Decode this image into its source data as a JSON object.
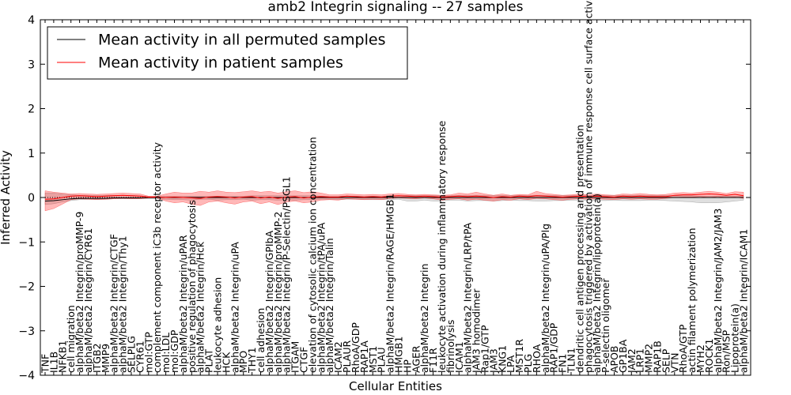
{
  "chart_data": {
    "type": "line",
    "title": "amb2 Integrin signaling -- 27 samples",
    "xlabel": "Cellular Entities",
    "ylabel": "Inferred Activity",
    "ylim": [
      -4,
      4
    ],
    "yticks": [
      -4,
      -3,
      -2,
      -1,
      0,
      1,
      2,
      3,
      4
    ],
    "grid": false,
    "legend_position": "top-left",
    "categories": [
      "TNF",
      "IL1B",
      "NFKB1",
      "cell migration",
      "alphaM/beta2 Integrin/proMMP-9",
      "alphaM/beta2 Integrin/CYR61",
      "ITGB2",
      "MMP9",
      "alphaM/beta2 Integrin/CTGF",
      "alphaM/beta2 Integrin/Thy1",
      "SELPLG",
      "CYR61",
      "mol:GTP",
      "complement component iC3b receptor activity",
      "mol:LDL",
      "mol:GDP",
      "alphaM/beta2 Integrin/uPAR",
      "positive regulation of phagocytosis",
      "alphaM/beta2 Integrin/Hck",
      "PLAT",
      "leukocyte adhesion",
      "HCK",
      "alphaM/beta2 Integrin/uPA",
      "MPO",
      "THY1",
      "cell adhesion",
      "alphaM/beta2 Integrin/GPIbA",
      "alphaM/beta2 Integrin/proMMP-2",
      "alphaM/beta2 Integrin/P-Selectin/PSGL1",
      "ITGAM",
      "CTGF",
      "elevation of cytosolic calcium ion concentration",
      "alphaM/beta2 Integrin/tPA/uPA",
      "alphaM/beta2 Integrin/Talin",
      "ICAM2",
      "PLAUR",
      "RhoA/GDP",
      "RAP1A",
      "MST1",
      "PLAU",
      "alphaM/beta2 Integrin/RAGE/HMGB1",
      "HMGB1",
      "HP",
      "AGER",
      "alphaM/beta2 Integrin",
      "F11R",
      "leukocyte activation during inflammatory response",
      "fibrinolysis",
      "ICAM1",
      "alphaM/beta2 Integrin/LRP/tPA",
      "JAM3 homodimer",
      "Rap1/GTP",
      "JAM3",
      "KNG1",
      "LPA",
      "MST1R",
      "PLG",
      "RHOA",
      "alphaM/beta2 Integrin/uPA/Plg",
      "RAP1/GDP",
      "FN1",
      "TLN1",
      "dendritic cell antigen processing and presentation",
      "phagocytosis triggered by activation of immune response cell surface activating receptor",
      "alphaM/beta2 Integrin/lipoprotein(a)",
      "P-selectin oligomer",
      "APOB",
      "GP1BA",
      "JAM2",
      "LRP1",
      "MMP2",
      "RAP1B",
      "SELP",
      "VTN",
      "RhoA/GTP",
      "actin filament polymerization",
      "MYH2",
      "ROCK1",
      "alphaM/beta2 Integrin/JAM2/JAM3",
      "Ron/MSP",
      "Lipoprotein(a)",
      "alphaM/beta2 Integrin/ICAM1"
    ],
    "series": [
      {
        "name": "Mean activity in all permuted samples",
        "color": "#000000",
        "values": [
          -0.08,
          -0.07,
          -0.05,
          -0.03,
          -0.02,
          -0.02,
          -0.02,
          -0.02,
          -0.01,
          -0.01,
          -0.01,
          -0.01,
          0,
          0,
          0,
          0,
          0,
          0,
          0,
          0,
          0,
          0,
          0,
          0,
          0,
          0,
          0,
          0,
          0,
          0,
          0,
          0,
          0,
          0,
          0,
          0,
          0,
          0,
          0,
          0,
          0,
          0,
          0,
          0,
          0,
          0,
          0,
          0,
          0,
          0,
          0,
          0,
          0,
          0,
          0,
          0,
          0,
          0,
          0,
          0,
          0,
          0,
          0,
          0,
          0,
          0,
          0,
          0,
          0,
          0,
          0,
          0,
          0,
          0,
          0,
          0,
          0,
          0,
          0,
          0,
          0,
          0
        ],
        "band_lower": [
          -0.16,
          -0.14,
          -0.1,
          -0.07,
          -0.05,
          -0.04,
          -0.04,
          -0.04,
          -0.03,
          -0.03,
          -0.03,
          -0.02,
          -0.03,
          -0.03,
          -0.04,
          -0.05,
          -0.05,
          -0.06,
          -0.04,
          -0.04,
          -0.06,
          -0.05,
          -0.05,
          -0.04,
          -0.06,
          -0.05,
          -0.05,
          -0.06,
          -0.05,
          -0.06,
          -0.05,
          -0.05,
          -0.04,
          -0.04,
          -0.05,
          -0.04,
          -0.04,
          -0.05,
          -0.05,
          -0.05,
          -0.05,
          -0.04,
          -0.08,
          -0.08,
          -0.06,
          -0.08,
          -0.08,
          -0.06,
          -0.06,
          -0.08,
          -0.07,
          -0.07,
          -0.08,
          -0.07,
          -0.06,
          -0.07,
          -0.07,
          -0.08,
          -0.08,
          -0.07,
          -0.07,
          -0.06,
          -0.06,
          -0.06,
          -0.07,
          -0.07,
          -0.06,
          -0.07,
          -0.07,
          -0.07,
          -0.06,
          -0.06,
          -0.07,
          -0.08,
          -0.09,
          -0.1,
          -0.12,
          -0.12,
          -0.12,
          -0.1,
          -0.08,
          -0.06
        ],
        "band_upper": [
          0.1,
          0.1,
          0.08,
          0.06,
          0.05,
          0.05,
          0.05,
          0.05,
          0.05,
          0.05,
          0.05,
          0.04,
          0.02,
          0.02,
          0.03,
          0.03,
          0.03,
          0.03,
          0.03,
          0.03,
          0.03,
          0.03,
          0.03,
          0.03,
          0.04,
          0.04,
          0.04,
          0.04,
          0.04,
          0.04,
          0.04,
          0.04,
          0.03,
          0.03,
          0.03,
          0.03,
          0.03,
          0.03,
          0.03,
          0.03,
          0.03,
          0.04,
          0.05,
          0.05,
          0.04,
          0.05,
          0.05,
          0.04,
          0.05,
          0.05,
          0.05,
          0.05,
          0.05,
          0.05,
          0.04,
          0.05,
          0.05,
          0.05,
          0.05,
          0.05,
          0.05,
          0.05,
          0.05,
          0.05,
          0.05,
          0.05,
          0.05,
          0.05,
          0.05,
          0.05,
          0.05,
          0.05,
          0.05,
          0.04,
          0.04,
          0.04,
          0.03,
          0.03,
          0.03,
          0.03,
          0.03,
          0.03
        ]
      },
      {
        "name": "Mean activity in patient samples",
        "color": "#ff0000",
        "values": [
          -0.04,
          -0.03,
          0.0,
          0.03,
          0.04,
          0.03,
          0.02,
          0.03,
          0.04,
          0.05,
          0.04,
          0.03,
          0.01,
          0.01,
          0.0,
          0.01,
          0.0,
          -0.01,
          -0.02,
          0.01,
          0.02,
          0.01,
          -0.01,
          0.01,
          0.02,
          -0.01,
          0.01,
          -0.02,
          0.01,
          0.02,
          -0.01,
          0.01,
          0.02,
          0.01,
          0.01,
          0.03,
          0.02,
          0.01,
          0.02,
          0.01,
          0.03,
          0.04,
          0.03,
          0.02,
          0.03,
          0.02,
          0.01,
          0.02,
          0.03,
          0.02,
          0.03,
          0.02,
          0.0,
          0.02,
          0.01,
          0.03,
          0.02,
          0.04,
          0.03,
          0.02,
          0.01,
          0.02,
          0.03,
          0.02,
          0.03,
          0.02,
          0.01,
          0.03,
          0.02,
          0.03,
          0.02,
          0.02,
          0.02,
          0.05,
          0.06,
          0.06,
          0.07,
          0.08,
          0.07,
          0.05,
          0.07,
          0.04
        ],
        "band_lower": [
          -0.3,
          -0.25,
          -0.15,
          -0.05,
          -0.03,
          -0.04,
          -0.05,
          -0.04,
          -0.03,
          -0.02,
          -0.03,
          -0.03,
          -0.01,
          -0.01,
          -0.08,
          -0.12,
          -0.1,
          -0.15,
          -0.18,
          -0.1,
          -0.08,
          -0.12,
          -0.15,
          -0.1,
          -0.08,
          -0.14,
          -0.1,
          -0.16,
          -0.1,
          -0.08,
          -0.12,
          -0.1,
          -0.06,
          -0.05,
          -0.06,
          -0.03,
          -0.04,
          -0.05,
          -0.04,
          -0.05,
          -0.02,
          -0.01,
          -0.02,
          -0.03,
          -0.01,
          -0.03,
          -0.06,
          -0.04,
          -0.03,
          -0.06,
          -0.04,
          -0.06,
          -0.08,
          -0.05,
          -0.06,
          -0.03,
          -0.05,
          -0.02,
          -0.03,
          -0.05,
          -0.06,
          -0.04,
          -0.03,
          -0.04,
          -0.03,
          -0.04,
          -0.05,
          -0.03,
          -0.04,
          -0.03,
          -0.04,
          -0.04,
          -0.02,
          0.0,
          0.01,
          0.01,
          0.02,
          0.0,
          0.02,
          0.0,
          0.01,
          -0.02
        ],
        "band_upper": [
          0.15,
          0.12,
          0.1,
          0.08,
          0.09,
          0.08,
          0.07,
          0.08,
          0.09,
          0.1,
          0.09,
          0.08,
          0.03,
          0.03,
          0.08,
          0.12,
          0.1,
          0.1,
          0.14,
          0.12,
          0.15,
          0.12,
          0.11,
          0.13,
          0.15,
          0.12,
          0.14,
          0.1,
          0.13,
          0.15,
          0.11,
          0.13,
          0.1,
          0.06,
          0.06,
          0.08,
          0.07,
          0.06,
          0.07,
          0.06,
          0.08,
          0.09,
          0.07,
          0.06,
          0.07,
          0.06,
          0.05,
          0.06,
          0.1,
          0.08,
          0.12,
          0.08,
          0.05,
          0.08,
          0.05,
          0.07,
          0.06,
          0.14,
          0.09,
          0.07,
          0.05,
          0.06,
          0.08,
          0.06,
          0.08,
          0.06,
          0.05,
          0.08,
          0.07,
          0.09,
          0.07,
          0.06,
          0.07,
          0.1,
          0.11,
          0.1,
          0.12,
          0.14,
          0.12,
          0.09,
          0.13,
          0.12
        ]
      }
    ]
  }
}
